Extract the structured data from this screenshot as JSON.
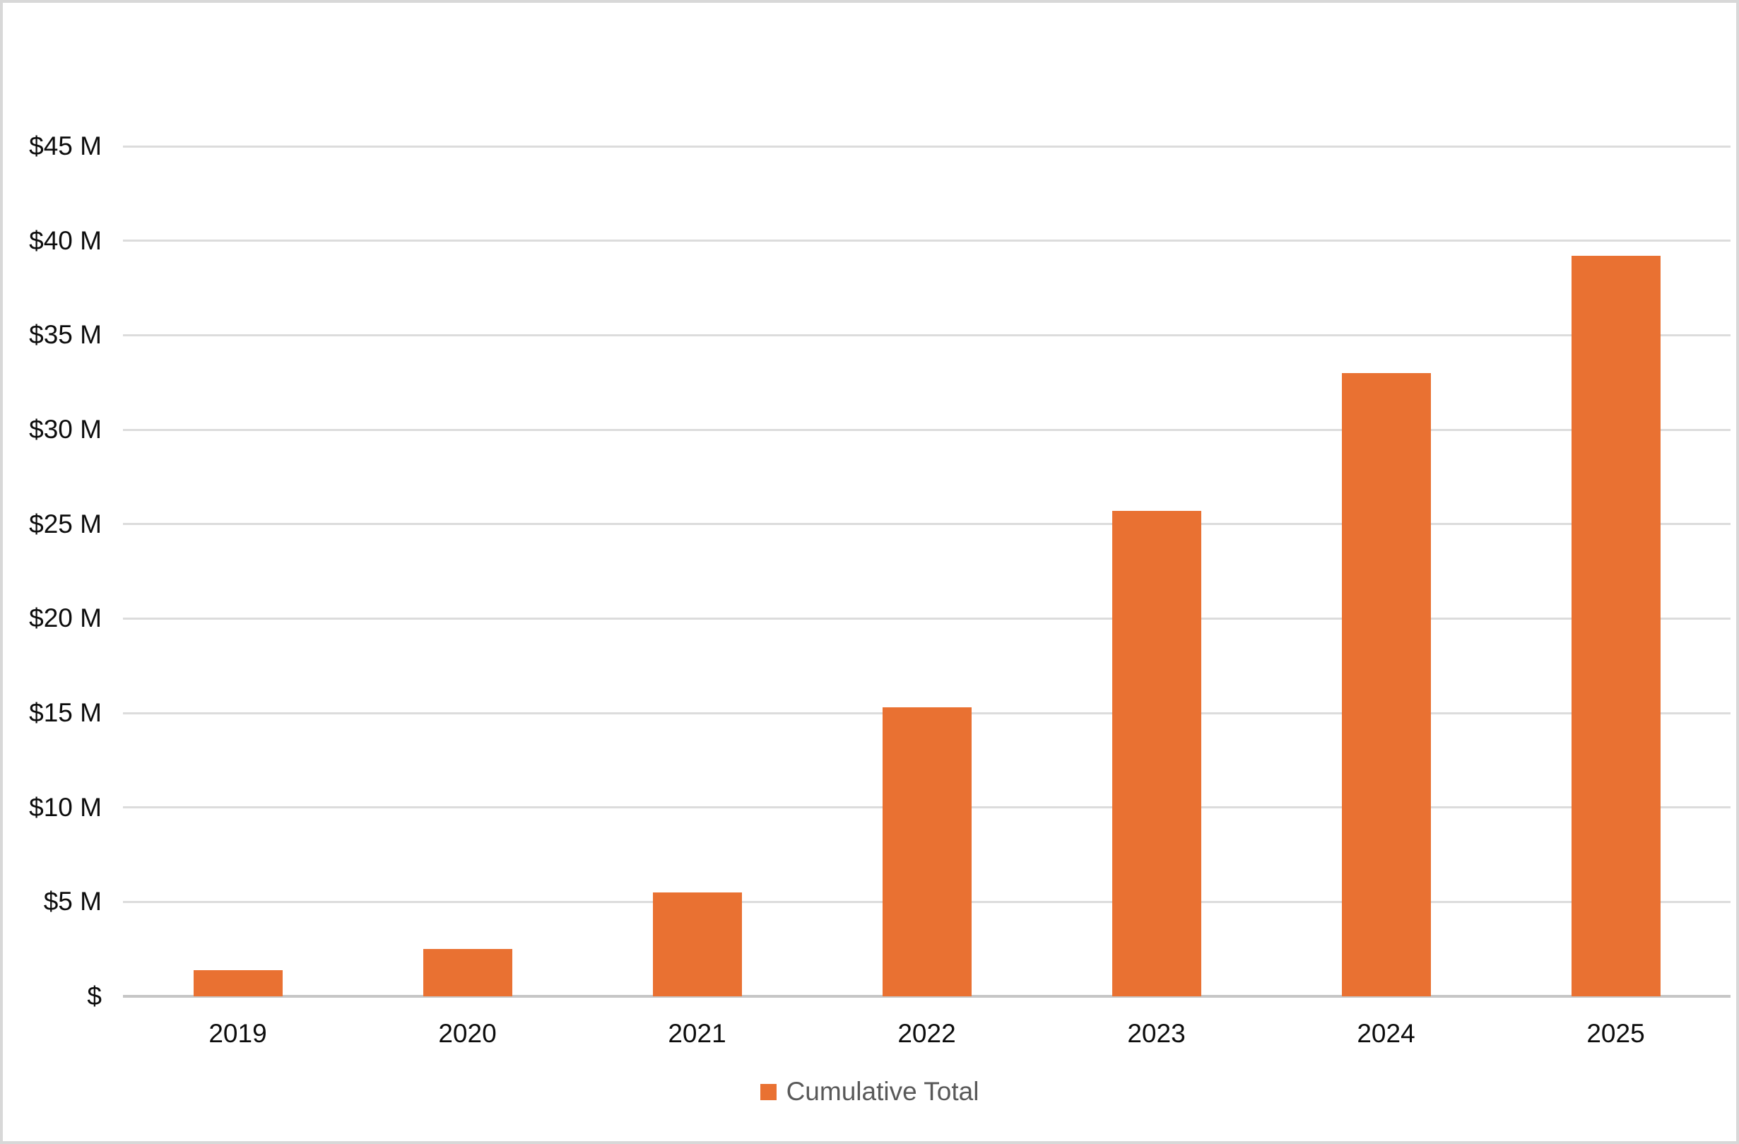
{
  "chart_data": {
    "type": "bar",
    "title": "",
    "categories": [
      "2019",
      "2020",
      "2021",
      "2022",
      "2023",
      "2024",
      "2025"
    ],
    "series": [
      {
        "name": "Cumulative Total",
        "values": [
          1.4,
          2.5,
          5.5,
          15.3,
          25.7,
          33.0,
          39.2
        ]
      }
    ],
    "units": "millions USD",
    "ylim": [
      0,
      45
    ],
    "grid": true,
    "legend_position": "bottom",
    "bar_color": "#E97132",
    "y_ticks": [
      {
        "value": 45,
        "label": "$45 M"
      },
      {
        "value": 40,
        "label": "$40 M"
      },
      {
        "value": 35,
        "label": "$35 M"
      },
      {
        "value": 30,
        "label": "$30 M"
      },
      {
        "value": 25,
        "label": "$25 M"
      },
      {
        "value": 20,
        "label": "$20 M"
      },
      {
        "value": 15,
        "label": "$15 M"
      },
      {
        "value": 10,
        "label": "$10 M"
      },
      {
        "value": 5,
        "label": "$5 M"
      },
      {
        "value": 0,
        "label": "$"
      }
    ]
  },
  "colors": {
    "background": "#FFFFFF",
    "border": "#D8D8D8",
    "gridline": "#DCDCDC",
    "axis_line": "#C6C6C6",
    "axis_text": "#0D0D0D",
    "legend_text": "#595959"
  },
  "legend": {
    "label": "Cumulative Total"
  }
}
